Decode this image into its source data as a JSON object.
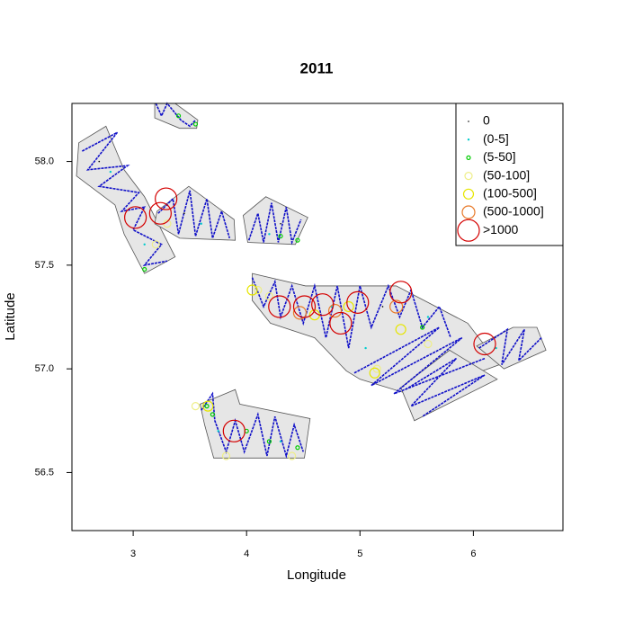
{
  "chart_data": {
    "type": "scatter",
    "title": "2011",
    "x_label": "Longitude",
    "y_label": "Latitude",
    "xlim": [
      2.46,
      6.79
    ],
    "ylim": [
      56.22,
      58.28
    ],
    "xticks": [
      3,
      4,
      5,
      6
    ],
    "yticks": [
      56.5,
      {
        "value": 57,
        "label": "57.0"
      },
      57.5,
      {
        "value": 58,
        "label": "58.0"
      }
    ],
    "area_color": "#e6e6e6",
    "track_color": "#1010c8",
    "areas": [
      {
        "x": [
          2.52,
          2.76,
          2.92,
          3.1,
          3.37,
          3.1,
          2.92,
          2.84,
          2.5
        ],
        "y": [
          58.09,
          58.17,
          57.96,
          57.83,
          57.54,
          57.46,
          57.65,
          57.79,
          57.93
        ]
      },
      {
        "x": [
          3.19,
          3.37,
          3.57,
          3.56,
          3.41,
          3.19
        ],
        "y": [
          58.28,
          58.28,
          58.2,
          58.16,
          58.16,
          58.21
        ]
      },
      {
        "x": [
          3.21,
          3.49,
          3.89,
          3.9,
          3.41,
          3.19
        ],
        "y": [
          57.76,
          57.88,
          57.72,
          57.62,
          57.63,
          57.7
        ]
      },
      {
        "x": [
          3.97,
          4.17,
          4.54,
          4.43,
          4.01
        ],
        "y": [
          57.74,
          57.83,
          57.73,
          57.6,
          57.61
        ]
      },
      {
        "x": [
          4.05,
          4.52,
          5.32,
          5.95,
          6.23,
          5.48,
          5.0,
          4.88,
          4.6,
          4.21,
          4.05
        ],
        "y": [
          57.46,
          57.4,
          57.4,
          57.22,
          57.02,
          56.87,
          56.95,
          56.99,
          57.15,
          57.22,
          57.33
        ]
      },
      {
        "x": [
          6.03,
          6.35,
          6.56,
          6.64,
          6.27
        ],
        "y": [
          57.11,
          57.2,
          57.2,
          57.09,
          57.0
        ]
      },
      {
        "x": [
          5.36,
          5.79,
          6.21,
          5.48
        ],
        "y": [
          56.91,
          57.09,
          56.95,
          56.75
        ]
      },
      {
        "x": [
          3.59,
          3.9,
          3.94,
          4.56,
          4.51,
          3.71,
          3.63
        ],
        "y": [
          56.83,
          56.9,
          56.83,
          56.76,
          56.57,
          56.57,
          56.73
        ]
      }
    ],
    "tracks": [
      {
        "x": [
          2.55,
          2.86,
          2.6,
          2.95,
          2.7,
          3.05,
          2.9,
          3.1,
          3.0,
          3.25,
          3.1,
          3.3
        ],
        "y": [
          58.05,
          58.14,
          57.96,
          57.98,
          57.88,
          57.85,
          57.76,
          57.78,
          57.67,
          57.6,
          57.5,
          57.52
        ]
      },
      {
        "x": [
          3.2,
          3.25,
          3.3,
          3.42,
          3.5,
          3.55
        ],
        "y": [
          58.28,
          58.22,
          58.28,
          58.2,
          58.17,
          58.2
        ]
      },
      {
        "x": [
          3.22,
          3.35,
          3.4,
          3.5,
          3.55,
          3.65,
          3.7,
          3.78,
          3.85
        ],
        "y": [
          57.75,
          57.82,
          57.65,
          57.86,
          57.64,
          57.82,
          57.63,
          57.76,
          57.63
        ]
      },
      {
        "x": [
          4.02,
          4.1,
          4.15,
          4.22,
          4.28,
          4.35,
          4.4,
          4.48
        ],
        "y": [
          57.62,
          57.75,
          57.61,
          57.8,
          57.61,
          57.78,
          57.61,
          57.72
        ]
      },
      {
        "x": [
          4.05,
          4.15,
          4.25,
          4.3,
          4.4,
          4.5,
          4.6,
          4.7,
          4.8,
          4.9,
          5.0,
          5.1,
          5.25,
          5.35,
          5.45,
          5.55,
          5.7,
          5.8
        ],
        "y": [
          57.44,
          57.3,
          57.42,
          57.25,
          57.4,
          57.22,
          57.4,
          57.15,
          57.4,
          57.1,
          57.4,
          57.2,
          57.4,
          57.25,
          57.38,
          57.2,
          57.3,
          57.15
        ]
      },
      {
        "x": [
          4.95,
          5.7,
          5.1,
          5.9,
          5.3,
          6.1
        ],
        "y": [
          56.98,
          57.2,
          56.92,
          57.15,
          56.88,
          57.05
        ]
      },
      {
        "x": [
          5.4,
          5.85,
          5.45,
          6.1,
          5.55
        ],
        "y": [
          56.9,
          57.05,
          56.82,
          56.97,
          56.77
        ]
      },
      {
        "x": [
          6.05,
          6.3,
          6.25,
          6.45,
          6.4,
          6.6
        ],
        "y": [
          57.1,
          57.19,
          57.02,
          57.19,
          57.04,
          57.15
        ]
      },
      {
        "x": [
          3.6,
          3.7,
          3.72,
          3.82,
          3.9,
          3.98,
          4.1,
          4.18,
          4.25,
          4.35,
          4.42,
          4.5
        ],
        "y": [
          56.8,
          56.88,
          56.75,
          56.6,
          56.75,
          56.6,
          56.78,
          56.58,
          56.77,
          56.58,
          56.73,
          56.6
        ]
      }
    ],
    "legend": "top-right",
    "series": [
      {
        "name": "0",
        "color": "#000000",
        "x": [
          2.7,
          3.45,
          4.3,
          5.2
        ],
        "y": [
          58.0,
          57.75,
          57.7,
          57.3
        ]
      },
      {
        "name": "(0-5]",
        "color": "#00cccc",
        "x": [
          2.8,
          3.1,
          3.6,
          4.2,
          4.75,
          5.05,
          5.6,
          6.2,
          3.75,
          4.3
        ],
        "y": [
          57.95,
          57.6,
          57.7,
          57.65,
          57.3,
          57.1,
          57.25,
          57.1,
          56.7,
          56.65
        ]
      },
      {
        "name": "(5-50]",
        "color": "#00cc00",
        "x": [
          3.4,
          3.55,
          3.1,
          4.3,
          4.45,
          5.55,
          3.65,
          3.7,
          4.0,
          4.2,
          4.45
        ],
        "y": [
          58.22,
          58.18,
          57.48,
          57.64,
          57.62,
          57.2,
          56.82,
          56.78,
          56.7,
          56.65,
          56.62
        ]
      },
      {
        "name": "(50-100]",
        "color": "#eeee88",
        "x": [
          3.2,
          3.3,
          4.1,
          4.2,
          5.15,
          5.6,
          3.55,
          3.82,
          4.4
        ],
        "y": [
          57.6,
          57.7,
          57.38,
          57.35,
          57.0,
          57.12,
          56.82,
          56.58,
          56.58
        ]
      },
      {
        "name": "(100-500]",
        "color": "#e6e600",
        "x": [
          5.13,
          5.36,
          4.05,
          4.6,
          3.66,
          4.9
        ],
        "y": [
          56.98,
          57.19,
          57.38,
          57.26,
          56.82,
          57.3
        ]
      },
      {
        "name": "(500-1000]",
        "color": "#e87a2a",
        "x": [
          5.32,
          4.78,
          4.47
        ],
        "y": [
          57.3,
          57.28,
          57.27
        ]
      },
      {
        "name": ">1000",
        "color": "#d40000",
        "x": [
          3.02,
          3.24,
          3.29,
          4.29,
          4.51,
          4.67,
          4.83,
          4.98,
          5.36,
          6.1,
          3.89
        ],
        "y": [
          57.73,
          57.75,
          57.82,
          57.3,
          57.3,
          57.31,
          57.22,
          57.32,
          57.37,
          57.12,
          56.7
        ]
      }
    ]
  }
}
